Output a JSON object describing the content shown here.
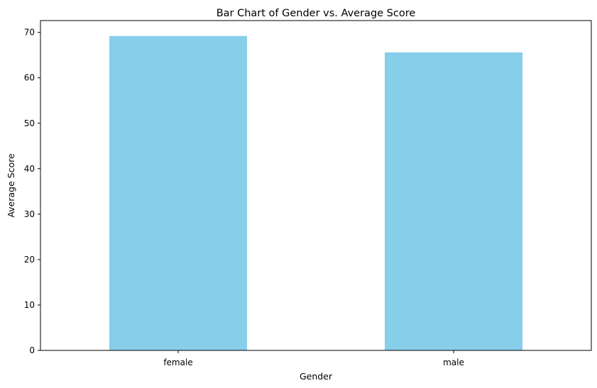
{
  "chart_data": {
    "type": "bar",
    "title": "Bar Chart of Gender vs. Average Score",
    "xlabel": "Gender",
    "ylabel": "Average Score",
    "categories": [
      "female",
      "male"
    ],
    "values": [
      69.2,
      65.6
    ],
    "ylim": [
      0,
      72.6
    ],
    "yticks": [
      0,
      10,
      20,
      30,
      40,
      50,
      60,
      70
    ],
    "ytick_labels": [
      "0",
      "10",
      "20",
      "30",
      "40",
      "50",
      "60",
      "70"
    ],
    "grid": false,
    "legend": "none",
    "bar_color": "#87ceeb"
  }
}
